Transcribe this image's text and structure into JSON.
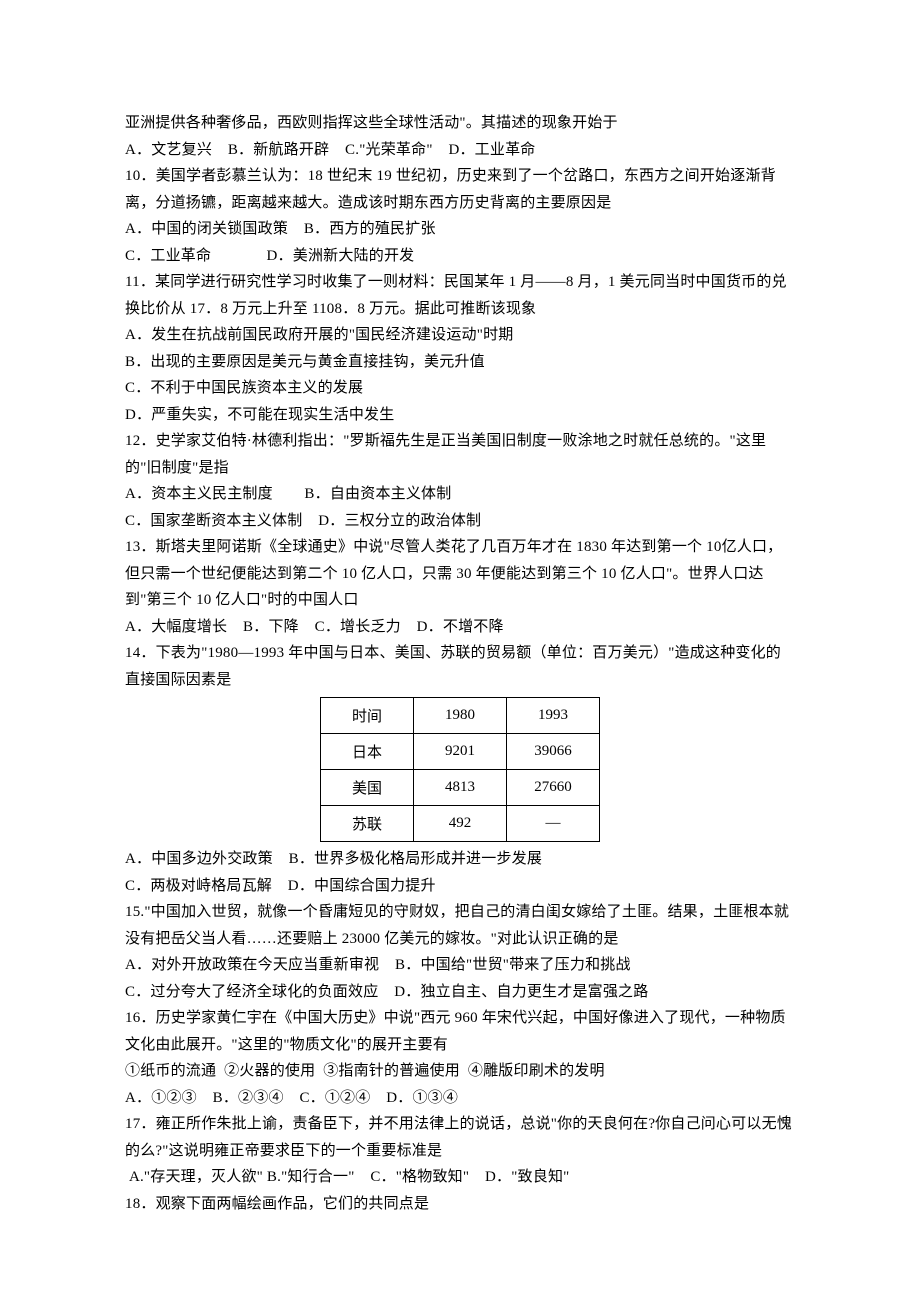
{
  "lines_before": [
    "亚洲提供各种奢侈品，西欧则指挥这些全球性活动\"。其描述的现象开始于",
    "A．文艺复兴    B．新航路开辟    C.\"光荣革命\"    D．工业革命",
    "10．美国学者彭慕兰认为：18 世纪末 19 世纪初，历史来到了一个岔路口，东西方之间开始逐渐背离，分道扬镳，距离越来越大。造成该时期东西方历史背离的主要原因是",
    "A．中国的闭关锁国政策    B．西方的殖民扩张",
    "C．工业革命              D．美洲新大陆的开发",
    "11．某同学进行研究性学习时收集了一则材料：民国某年 1 月——8 月，1 美元同当时中国货币的兑换比价从 17．8 万元上升至 1108．8 万元。据此可推断该现象",
    "A．发生在抗战前国民政府开展的\"国民经济建设运动\"时期",
    "B．出现的主要原因是美元与黄金直接挂钩，美元升值",
    "C．不利于中国民族资本主义的发展",
    "D．严重失实，不可能在现实生活中发生",
    "12．史学家艾伯特·林德利指出：\"罗斯福先生是正当美国旧制度一败涂地之时就任总统的。\"这里的\"旧制度\"是指",
    "A．资本主义民主制度        B．自由资本主义体制",
    "C．国家垄断资本主义体制    D．三权分立的政治体制",
    "13．斯塔夫里阿诺斯《全球通史》中说\"尽管人类花了几百万年才在 1830 年达到第一个 10亿人口，但只需一个世纪便能达到第二个 10 亿人口，只需 30 年便能达到第三个 10 亿人口\"。世界人口达到\"第三个 10 亿人口\"时的中国人口",
    "A．大幅度增长    B．下降    C．增长乏力    D．不增不降",
    "14．下表为\"1980—1993 年中国与日本、美国、苏联的贸易额（单位：百万美元）\"造成这种变化的直接国际因素是"
  ],
  "table": {
    "columns": [
      "时间",
      "1980",
      "1993"
    ],
    "rows": [
      [
        "日本",
        "9201",
        "39066"
      ],
      [
        "美国",
        "4813",
        "27660"
      ],
      [
        "苏联",
        "492",
        "—"
      ]
    ]
  },
  "lines_after": [
    "A．中国多边外交政策    B．世界多极化格局形成并进一步发展",
    "C．两极对峙格局瓦解    D．中国综合国力提升",
    "15.\"中国加入世贸，就像一个昏庸短见的守财奴，把自己的清白闺女嫁给了土匪。结果，土匪根本就没有把岳父当人看……还要赔上 23000 亿美元的嫁妆。\"对此认识正确的是",
    "A．对外开放政策在今天应当重新审视    B．中国给\"世贸\"带来了压力和挑战",
    "C．过分夸大了经济全球化的负面效应    D．独立自主、自力更生才是富强之路",
    "16．历史学家黄仁宇在《中国大历史》中说\"西元 960 年宋代兴起，中国好像进入了现代，一种物质文化由此展开。\"这里的\"物质文化\"的展开主要有",
    "①纸币的流通  ②火器的使用  ③指南针的普遍使用  ④雕版印刷术的发明",
    "A．①②③    B．②③④    C．①②④    D．①③④",
    "17．雍正所作朱批上谕，责备臣下，并不用法律上的说话，总说\"你的天良何在?你自己问心可以无愧的么?\"这说明雍正帝要求臣下的一个重要标准是",
    " A.\"存天理，灭人欲\" B.\"知行合一\"    C．\"格物致知\"    D．\"致良知\"",
    "18．观察下面两幅绘画作品，它们的共同点是"
  ]
}
